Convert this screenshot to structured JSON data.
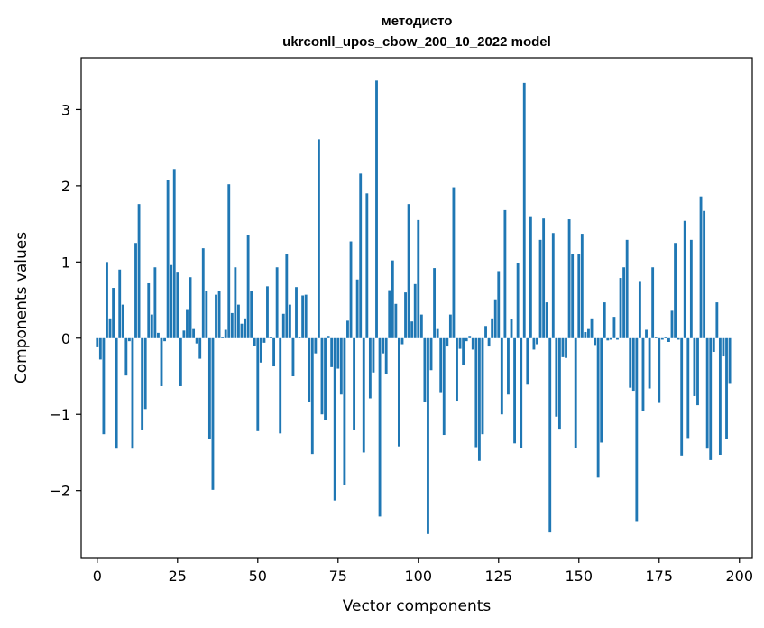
{
  "chart_data": {
    "type": "bar",
    "title_line1": "методисто",
    "title_line2": "ukrconll_upos_cbow_200_10_2022 model",
    "xlabel": "Vector components",
    "ylabel": "Components values",
    "xlim": [
      -5,
      204
    ],
    "ylim": [
      -2.88,
      3.68
    ],
    "xticks": [
      0,
      25,
      50,
      75,
      100,
      125,
      150,
      175,
      200
    ],
    "xtick_labels": [
      "0",
      "25",
      "50",
      "75",
      "100",
      "125",
      "150",
      "175",
      "200"
    ],
    "yticks": [
      -2,
      -1,
      0,
      1,
      2,
      3
    ],
    "ytick_labels": [
      "−2",
      "−1",
      "0",
      "1",
      "2",
      "3"
    ],
    "grid": false,
    "bar_color": "#1f77b4",
    "bar_width": 0.8,
    "series": [
      {
        "values": [
          -0.12,
          -0.28,
          -1.26,
          1.0,
          0.26,
          0.66,
          -1.45,
          0.9,
          0.44,
          -0.49,
          -0.04,
          -1.45,
          1.25,
          1.76,
          -1.21,
          -0.93,
          0.72,
          0.31,
          0.93,
          0.07,
          -0.63,
          -0.04,
          2.07,
          0.96,
          2.22,
          0.86,
          -0.63,
          0.1,
          0.37,
          0.8,
          0.12,
          -0.07,
          -0.27,
          1.18,
          0.62,
          -1.32,
          -1.99,
          0.57,
          0.62,
          0.02,
          0.11,
          2.02,
          0.33,
          0.93,
          0.44,
          0.19,
          0.26,
          1.35,
          0.62,
          -0.1,
          -1.22,
          -0.32,
          -0.06,
          0.68,
          0.01,
          -0.37,
          0.93,
          -1.25,
          0.32,
          1.1,
          0.44,
          -0.5,
          0.67,
          0.02,
          0.56,
          0.57,
          -0.84,
          -1.52,
          -0.2,
          2.61,
          -1.0,
          -1.07,
          0.03,
          -0.38,
          -2.13,
          -0.4,
          -0.74,
          -1.93,
          0.23,
          1.27,
          -1.21,
          0.77,
          2.16,
          -1.5,
          1.9,
          -0.79,
          -0.45,
          3.38,
          -2.34,
          -0.2,
          -0.47,
          0.63,
          1.02,
          0.45,
          -1.42,
          -0.08,
          0.6,
          1.76,
          0.22,
          0.71,
          1.55,
          0.31,
          -0.84,
          -2.57,
          -0.42,
          0.92,
          0.12,
          -0.72,
          -1.27,
          -0.11,
          0.31,
          1.98,
          -0.82,
          -0.14,
          -0.35,
          -0.04,
          0.03,
          -0.15,
          -1.43,
          -1.61,
          -1.26,
          0.16,
          -0.11,
          0.26,
          0.51,
          0.88,
          -1.0,
          1.68,
          -0.74,
          0.25,
          -1.38,
          0.99,
          -1.44,
          3.35,
          -0.61,
          1.6,
          -0.15,
          -0.08,
          1.29,
          1.57,
          0.47,
          -2.55,
          1.38,
          -1.03,
          -1.2,
          -0.25,
          -0.26,
          1.56,
          1.1,
          -1.44,
          1.1,
          1.37,
          0.08,
          0.12,
          0.26,
          -0.09,
          -1.83,
          -1.37,
          0.47,
          -0.03,
          -0.02,
          0.28,
          -0.02,
          0.79,
          0.93,
          1.29,
          -0.65,
          -0.69,
          -2.4,
          0.75,
          -0.95,
          0.11,
          -0.66,
          0.93,
          0.02,
          -0.85,
          -0.02,
          0.02,
          -0.05,
          0.36,
          1.25,
          -0.02,
          -1.54,
          1.54,
          -1.31,
          1.29,
          -0.76,
          -0.88,
          1.86,
          1.67,
          -1.45,
          -1.6,
          -0.18,
          0.47,
          -1.53,
          -0.24,
          -1.32,
          -0.6
        ]
      }
    ]
  }
}
